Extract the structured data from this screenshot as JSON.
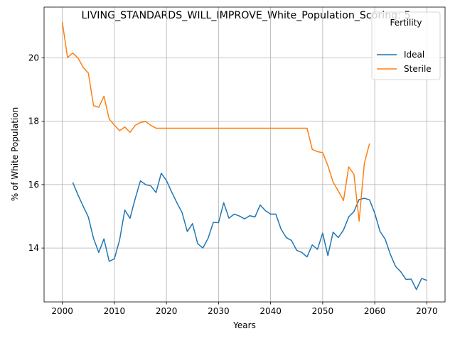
{
  "chart_data": {
    "type": "line",
    "title": "LIVING_STANDARDS_WILL_IMPROVE_White_Population_Scoring: 5",
    "xlabel": "Years",
    "ylabel": "% of White Population",
    "xlim": [
      1996.5,
      2073.5
    ],
    "ylim": [
      12.3,
      21.6
    ],
    "x_ticks": [
      2000,
      2010,
      2020,
      2030,
      2040,
      2050,
      2060,
      2070
    ],
    "y_ticks": [
      14,
      16,
      18,
      20
    ],
    "grid": true,
    "legend": {
      "title": "Fertility",
      "placement": "top-right"
    },
    "series": [
      {
        "name": "Ideal",
        "color": "#1f77b4",
        "x": [
          2002,
          2003,
          2004,
          2005,
          2006,
          2007,
          2008,
          2009,
          2010,
          2011,
          2012,
          2013,
          2014,
          2015,
          2016,
          2017,
          2018,
          2019,
          2020,
          2021,
          2022,
          2023,
          2024,
          2025,
          2026,
          2027,
          2028,
          2029,
          2030,
          2031,
          2032,
          2033,
          2034,
          2035,
          2036,
          2037,
          2038,
          2039,
          2040,
          2041,
          2042,
          2043,
          2044,
          2045,
          2046,
          2047,
          2048,
          2049,
          2050,
          2051,
          2052,
          2053,
          2054,
          2055,
          2056,
          2057,
          2058,
          2059,
          2060,
          2061,
          2062,
          2063,
          2064,
          2065,
          2066,
          2067,
          2068,
          2069,
          2070
        ],
        "values": [
          16.07,
          15.68,
          15.32,
          14.98,
          14.3,
          13.86,
          14.29,
          13.58,
          13.66,
          14.25,
          15.2,
          14.94,
          15.56,
          16.12,
          16.0,
          15.96,
          15.75,
          16.36,
          16.13,
          15.77,
          15.43,
          15.12,
          14.52,
          14.77,
          14.14,
          14.0,
          14.31,
          14.81,
          14.8,
          15.43,
          14.94,
          15.07,
          15.01,
          14.92,
          15.02,
          14.98,
          15.36,
          15.18,
          15.07,
          15.07,
          14.6,
          14.33,
          14.24,
          13.93,
          13.86,
          13.72,
          14.1,
          13.96,
          14.47,
          13.76,
          14.5,
          14.33,
          14.57,
          14.98,
          15.15,
          15.53,
          15.57,
          15.52,
          15.1,
          14.53,
          14.28,
          13.8,
          13.42,
          13.25,
          13.01,
          13.02,
          12.69,
          13.04,
          12.98
        ]
      },
      {
        "name": "Sterile",
        "color": "#ff7f0e",
        "x": [
          2000,
          2001,
          2002,
          2003,
          2004,
          2005,
          2006,
          2007,
          2008,
          2009,
          2010,
          2011,
          2012,
          2013,
          2014,
          2015,
          2016,
          2017,
          2018,
          2019,
          2020,
          2021,
          2022,
          2023,
          2024,
          2025,
          2026,
          2027,
          2028,
          2029,
          2030,
          2031,
          2032,
          2033,
          2034,
          2035,
          2036,
          2037,
          2038,
          2039,
          2040,
          2041,
          2042,
          2043,
          2044,
          2045,
          2046,
          2047,
          2048,
          2049,
          2050,
          2051,
          2052,
          2053,
          2054,
          2055,
          2056,
          2057,
          2058,
          2059
        ],
        "values": [
          21.13,
          20.01,
          20.15,
          20.0,
          19.7,
          19.52,
          18.49,
          18.44,
          18.79,
          18.07,
          17.88,
          17.7,
          17.82,
          17.65,
          17.87,
          17.96,
          17.99,
          17.87,
          17.78,
          17.78,
          17.78,
          17.78,
          17.78,
          17.78,
          17.78,
          17.78,
          17.78,
          17.78,
          17.78,
          17.78,
          17.78,
          17.78,
          17.78,
          17.78,
          17.78,
          17.78,
          17.78,
          17.78,
          17.78,
          17.78,
          17.78,
          17.78,
          17.78,
          17.78,
          17.78,
          17.78,
          17.78,
          17.78,
          17.11,
          17.04,
          17.01,
          16.6,
          16.08,
          15.8,
          15.5,
          16.56,
          16.33,
          14.85,
          16.67,
          17.3
        ]
      }
    ]
  }
}
